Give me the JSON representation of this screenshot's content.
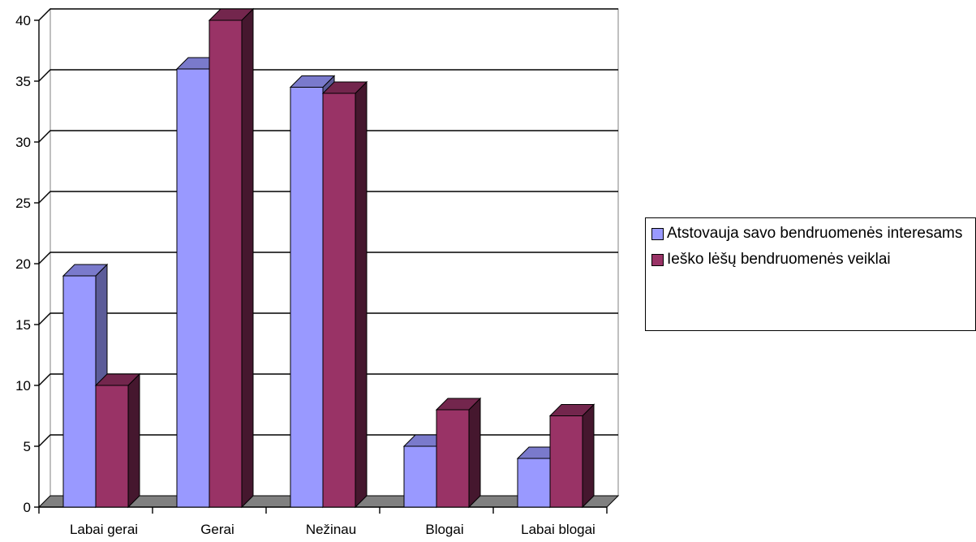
{
  "chart_data": {
    "type": "bar",
    "categories": [
      "Labai gerai",
      "Gerai",
      "Nežinau",
      "Blogai",
      "Labai blogai"
    ],
    "series": [
      {
        "name": "Atstovauja savo bendruomenės interesams",
        "values": [
          19,
          36,
          34.5,
          5,
          4
        ],
        "color": "#9999ff"
      },
      {
        "name": "Ieško lėšų bendruomenės veiklai",
        "values": [
          10,
          40,
          34,
          8,
          7.5
        ],
        "color": "#993366"
      }
    ],
    "ylim": [
      0,
      40
    ],
    "yticks": [
      0,
      5,
      10,
      15,
      20,
      25,
      30,
      35,
      40
    ],
    "grid": true,
    "three_d": true,
    "legend_position": "right"
  }
}
